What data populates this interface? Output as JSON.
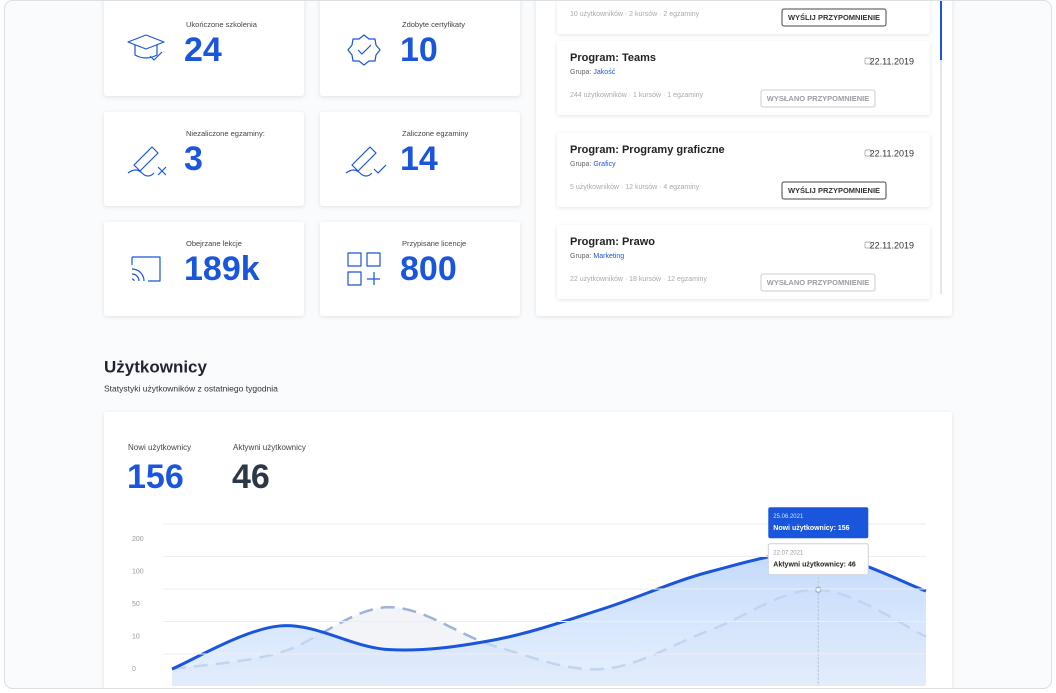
{
  "stats": [
    {
      "label": "Ukończone szkolenia",
      "value": "24"
    },
    {
      "label": "Zdobyte certyfikaty",
      "value": "10"
    },
    {
      "label": "Niezaliczone egzaminy:",
      "value": "3"
    },
    {
      "label": "Zaliczone egzaminy",
      "value": "14"
    },
    {
      "label": "Obejrzane lekcje",
      "value": "189k"
    },
    {
      "label": "Przypisane licencje",
      "value": "800"
    }
  ],
  "programs": [
    {
      "meta": "10 użytkowników · 2 kursów · 2 egzaminy",
      "button": "WYŚLIJ PRZYPOMNIENIE"
    },
    {
      "title": "Program: Teams",
      "group_label": "Grupa:",
      "group": "Jakość",
      "date": "22.11.2019",
      "meta": "244 użytkowników · 1 kursów · 1 egzaminy",
      "button": "WYSŁANO PRZYPOMNIENIE"
    },
    {
      "title": "Program: Programy graficzne",
      "group_label": "Grupa:",
      "group": "Graficy",
      "date": "22.11.2019",
      "meta": "5 użytkowników · 12 kursów · 4 egzaminy",
      "button": "WYŚLIJ PRZYPOMNIENIE"
    },
    {
      "title": "Program: Prawo",
      "group_label": "Grupa:",
      "group": "Marketing",
      "date": "22.11.2019",
      "meta": "22 użytkowników · 18 kursów · 12 egzaminy",
      "button": "WYSŁANO PRZYPOMNIENIE"
    }
  ],
  "users": {
    "title": "Użytkownicy",
    "subtitle": "Statystyki użytkowników z ostatniego tygodnia",
    "summary": [
      {
        "label": "Nowi użytkownicy",
        "value": "156"
      },
      {
        "label": "Aktywni użytkownicy",
        "value": "46"
      }
    ]
  },
  "chart_data": {
    "type": "area",
    "categories": [
      null,
      null,
      null,
      null,
      null,
      null,
      null,
      null
    ],
    "series": [
      {
        "color": "#1a56db",
        "values": [
          0,
          23,
          6,
          9,
          44,
          100,
          156,
          70
        ]
      },
      {
        "color": "#9fb3d6",
        "dashed": true,
        "values": [
          0,
          5,
          46,
          7,
          0,
          18,
          72,
          10
        ]
      }
    ],
    "ylim": [
      0,
      200
    ],
    "yticks": [
      0,
      10,
      50,
      100,
      200
    ],
    "grid": true,
    "annotations": [
      {
        "date": "25.06.2021",
        "text": "Nowi użytkownicy: 156"
      },
      {
        "date": "22.07.2021",
        "text": "Aktywni użytkownicy: 46"
      }
    ]
  }
}
